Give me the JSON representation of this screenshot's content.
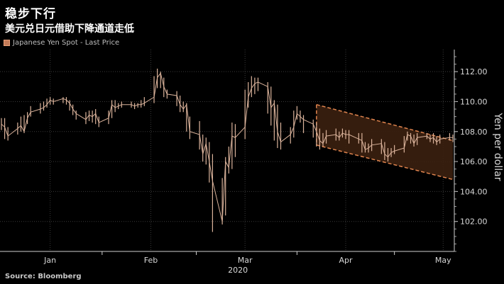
{
  "title": "稳步下行",
  "subtitle": "美元兑日元借助下降通道走低",
  "source": "Source: Bloomberg",
  "colors": {
    "background": "#000000",
    "grid": "#3a3a3a",
    "price": "#dbb39b",
    "channel": "#e0844e",
    "channel_fill": "#3b200f"
  },
  "chart_data": {
    "type": "line",
    "legend": [
      "Japanese Yen Spot - Last Price"
    ],
    "legend_position": "top-left",
    "ylabel": "Yen per dollar",
    "ylim": [
      100,
      113
    ],
    "yticks": [
      102,
      104,
      106,
      108,
      110,
      112
    ],
    "ytick_labels": [
      "102.00",
      "104.00",
      "106.00",
      "108.00",
      "110.00",
      "112.00"
    ],
    "xticks": [
      {
        "label": "Jan",
        "day": 16
      },
      {
        "label": "Feb",
        "day": 47
      },
      {
        "label": "Mar",
        "day": 76
      },
      {
        "label": "Apr",
        "day": 107
      },
      {
        "label": "May",
        "day": 137
      }
    ],
    "xlabel": "2020",
    "xlim": [
      1,
      140
    ],
    "grid": true,
    "series": [
      {
        "name": "Japanese Yen Spot - Last Price",
        "style": "hlc-bars",
        "x": [
          1,
          2,
          3,
          6,
          7,
          8,
          9,
          10,
          13,
          14,
          15,
          16,
          17,
          20,
          21,
          22,
          23,
          24,
          27,
          28,
          29,
          30,
          31,
          34,
          35,
          36,
          37,
          38,
          41,
          42,
          43,
          44,
          45,
          48,
          49,
          50,
          51,
          52,
          55,
          56,
          57,
          58,
          59,
          62,
          63,
          64,
          65,
          66,
          69,
          70,
          71,
          72,
          73,
          76,
          77,
          78,
          79,
          80,
          83,
          84,
          85,
          86,
          87,
          90,
          91,
          92,
          93,
          94,
          97,
          98,
          99,
          100,
          101,
          104,
          105,
          106,
          107,
          108,
          111,
          112,
          113,
          114,
          115,
          118,
          119,
          120,
          121,
          122,
          125,
          126,
          127,
          128,
          129,
          132,
          133,
          134,
          135,
          136,
          139,
          140
        ],
        "values": [
          108.5,
          108.3,
          107.7,
          108.2,
          108.4,
          108.0,
          108.9,
          109.3,
          109.5,
          109.6,
          109.8,
          110.1,
          110.0,
          110.2,
          110.1,
          109.9,
          109.5,
          109.2,
          108.8,
          109.1,
          109.0,
          109.2,
          108.6,
          108.9,
          109.8,
          109.6,
          109.7,
          109.8,
          109.8,
          109.7,
          109.8,
          109.8,
          109.9,
          110.3,
          111.6,
          111.9,
          111.0,
          110.5,
          110.4,
          109.8,
          109.5,
          109.8,
          108.0,
          107.8,
          106.5,
          107.2,
          106.0,
          104.7,
          102.0,
          106.0,
          105.6,
          107.7,
          107.6,
          108.3,
          110.3,
          110.9,
          111.2,
          111.3,
          111.0,
          109.6,
          109.9,
          108.0,
          107.3,
          107.8,
          108.3,
          109.2,
          109.0,
          108.8,
          108.5,
          108.0,
          107.4,
          107.2,
          107.7,
          107.8,
          107.6,
          107.9,
          107.8,
          107.8,
          107.5,
          107.4,
          106.8,
          106.9,
          107.1,
          107.2,
          106.5,
          106.3,
          106.6,
          106.7,
          106.9,
          107.8,
          107.7,
          107.2,
          107.6,
          107.7,
          107.5,
          107.6,
          107.3,
          107.5,
          107.6,
          107.6
        ],
        "highs": [
          108.9,
          108.9,
          108.3,
          108.6,
          109.0,
          109.1,
          109.3,
          109.7,
          109.9,
          110.0,
          110.2,
          110.3,
          110.2,
          110.3,
          110.3,
          110.1,
          109.8,
          109.4,
          109.3,
          109.4,
          109.4,
          109.5,
          109.0,
          109.4,
          110.1,
          110.1,
          109.9,
          110.0,
          110.0,
          109.9,
          109.9,
          110.1,
          110.3,
          111.7,
          112.2,
          112.0,
          111.6,
          110.8,
          110.7,
          110.4,
          110.0,
          109.9,
          109.0,
          108.7,
          107.8,
          107.6,
          107.3,
          106.5,
          104.9,
          106.3,
          107.0,
          108.6,
          108.5,
          110.8,
          111.3,
          111.7,
          111.6,
          111.6,
          111.3,
          111.0,
          110.1,
          109.8,
          108.6,
          108.3,
          109.4,
          109.7,
          109.4,
          109.1,
          108.8,
          108.6,
          108.2,
          107.9,
          108.1,
          108.2,
          108.0,
          108.2,
          108.1,
          108.1,
          107.9,
          107.9,
          107.3,
          107.2,
          107.5,
          107.5,
          107.3,
          106.9,
          106.9,
          107.1,
          107.7,
          108.0,
          107.9,
          107.8,
          107.9,
          107.9,
          107.8,
          107.9,
          107.7,
          107.8,
          107.9,
          107.8
        ],
        "lows": [
          108.1,
          107.5,
          107.4,
          107.8,
          108.0,
          107.9,
          108.5,
          109.0,
          109.2,
          109.4,
          109.6,
          109.8,
          109.8,
          109.9,
          109.8,
          109.4,
          109.1,
          108.8,
          108.5,
          108.7,
          108.6,
          108.5,
          108.3,
          108.5,
          108.9,
          109.3,
          109.5,
          109.6,
          109.6,
          109.5,
          109.6,
          109.6,
          109.7,
          109.9,
          110.9,
          110.9,
          110.3,
          110.2,
          109.7,
          109.3,
          109.3,
          108.0,
          107.5,
          106.8,
          106.0,
          105.8,
          104.6,
          101.3,
          101.8,
          102.4,
          105.2,
          105.5,
          106.3,
          107.5,
          109.6,
          110.3,
          110.5,
          110.7,
          109.2,
          108.4,
          107.4,
          106.9,
          106.8,
          107.2,
          107.6,
          108.8,
          108.6,
          107.9,
          107.6,
          107.0,
          106.8,
          107.0,
          107.2,
          107.4,
          107.4,
          107.6,
          107.5,
          107.2,
          107.2,
          106.6,
          106.6,
          106.6,
          106.7,
          106.5,
          106.1,
          106.0,
          106.3,
          106.5,
          106.6,
          107.4,
          107.2,
          107.0,
          107.1,
          107.5,
          107.3,
          107.2,
          107.1,
          107.2,
          107.4,
          107.3
        ]
      }
    ],
    "channel": {
      "upper": {
        "x": [
          98,
          140
        ],
        "y": [
          109.8,
          107.4
        ]
      },
      "lower": {
        "x": [
          98,
          140
        ],
        "y": [
          107.1,
          104.8
        ]
      }
    }
  }
}
